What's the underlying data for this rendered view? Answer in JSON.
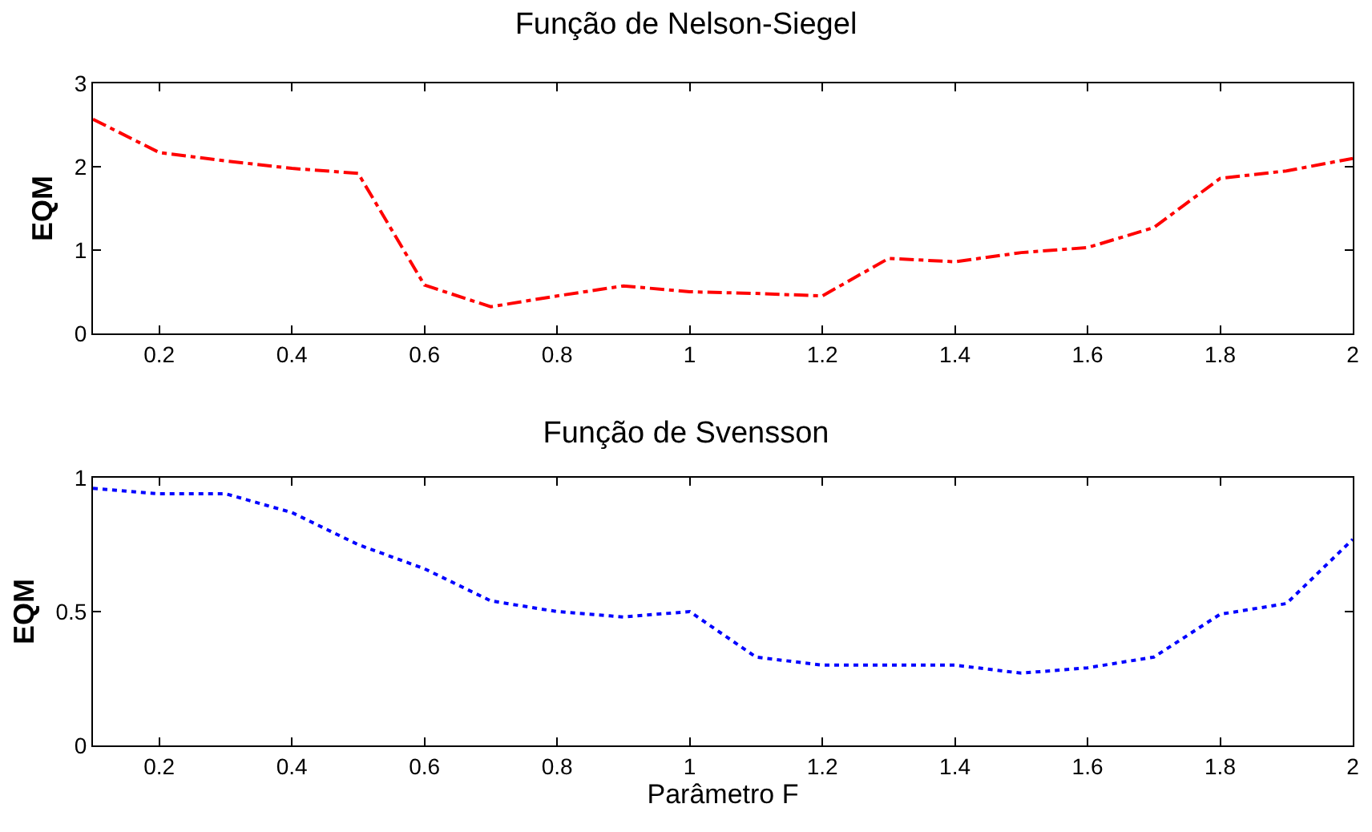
{
  "chart_data": [
    {
      "type": "line",
      "title": "Função de Nelson-Siegel",
      "ylabel": "EQM",
      "x": [
        0.1,
        0.2,
        0.3,
        0.4,
        0.5,
        0.6,
        0.7,
        0.8,
        0.9,
        1.0,
        1.1,
        1.2,
        1.3,
        1.4,
        1.5,
        1.6,
        1.7,
        1.8,
        1.9,
        2.0
      ],
      "series": [
        {
          "color": "#ff0000",
          "line_style": "dashed",
          "values": [
            2.57,
            2.17,
            2.07,
            1.98,
            1.92,
            0.58,
            0.32,
            0.45,
            0.57,
            0.5,
            0.48,
            0.45,
            0.9,
            0.86,
            0.97,
            1.03,
            1.27,
            1.86,
            1.95,
            2.1
          ]
        }
      ],
      "xlim": [
        0.1,
        2
      ],
      "xticks": [
        0.2,
        0.4,
        0.6,
        0.8,
        1,
        1.2,
        1.4,
        1.6,
        1.8,
        2
      ],
      "ylim": [
        0,
        3
      ],
      "yticks": [
        0,
        1,
        2,
        3
      ],
      "grid": false
    },
    {
      "type": "line",
      "title": "Função de Svensson",
      "xlabel": "Parâmetro F",
      "ylabel": "EQM",
      "x": [
        0.1,
        0.2,
        0.3,
        0.4,
        0.5,
        0.6,
        0.7,
        0.8,
        0.9,
        1.0,
        1.1,
        1.2,
        1.3,
        1.4,
        1.5,
        1.6,
        1.7,
        1.8,
        1.9,
        2.0
      ],
      "series": [
        {
          "color": "#0000ff",
          "line_style": "dotted",
          "values": [
            0.96,
            0.94,
            0.94,
            0.87,
            0.75,
            0.66,
            0.54,
            0.5,
            0.48,
            0.5,
            0.33,
            0.3,
            0.3,
            0.3,
            0.27,
            0.29,
            0.33,
            0.49,
            0.53,
            0.77
          ]
        }
      ],
      "xlim": [
        0.1,
        2
      ],
      "xticks": [
        0.2,
        0.4,
        0.6,
        0.8,
        1,
        1.2,
        1.4,
        1.6,
        1.8,
        2
      ],
      "ylim": [
        0,
        1
      ],
      "yticks": [
        0,
        0.5,
        1
      ],
      "grid": false
    }
  ]
}
